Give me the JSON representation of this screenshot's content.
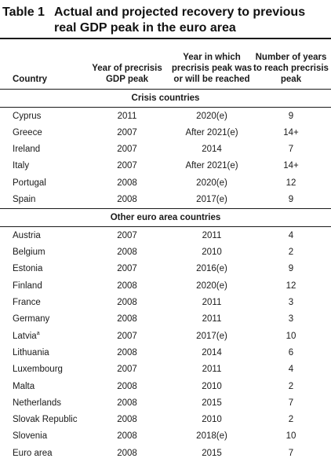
{
  "title": {
    "number": "Table 1",
    "text": "Actual and projected recovery to previous real GDP peak in the euro area"
  },
  "columns": {
    "country": "Country",
    "precrisis_peak": "Year of precrisis GDP peak",
    "reach_year": "Year in which precrisis peak was or will be reached",
    "years_to_reach": "Number of years to reach precrisis peak"
  },
  "sections": [
    {
      "label": "Crisis countries",
      "rows": [
        {
          "country": "Cyprus",
          "sup": "",
          "peak": "2011",
          "reach": "2020(e)",
          "years": "9"
        },
        {
          "country": "Greece",
          "sup": "",
          "peak": "2007",
          "reach": "After 2021(e)",
          "years": "14+"
        },
        {
          "country": "Ireland",
          "sup": "",
          "peak": "2007",
          "reach": "2014",
          "years": "7"
        },
        {
          "country": "Italy",
          "sup": "",
          "peak": "2007",
          "reach": "After 2021(e)",
          "years": "14+"
        },
        {
          "country": "Portugal",
          "sup": "",
          "peak": "2008",
          "reach": "2020(e)",
          "years": "12"
        },
        {
          "country": "Spain",
          "sup": "",
          "peak": "2008",
          "reach": "2017(e)",
          "years": "9"
        }
      ]
    },
    {
      "label": "Other euro area countries",
      "rows": [
        {
          "country": "Austria",
          "sup": "",
          "peak": "2007",
          "reach": "2011",
          "years": "4"
        },
        {
          "country": "Belgium",
          "sup": "",
          "peak": "2008",
          "reach": "2010",
          "years": "2"
        },
        {
          "country": "Estonia",
          "sup": "",
          "peak": "2007",
          "reach": "2016(e)",
          "years": "9"
        },
        {
          "country": "Finland",
          "sup": "",
          "peak": "2008",
          "reach": "2020(e)",
          "years": "12"
        },
        {
          "country": "France",
          "sup": "",
          "peak": "2008",
          "reach": "2011",
          "years": "3"
        },
        {
          "country": "Germany",
          "sup": "",
          "peak": "2008",
          "reach": "2011",
          "years": "3"
        },
        {
          "country": "Latvia",
          "sup": "a",
          "peak": "2007",
          "reach": "2017(e)",
          "years": "10"
        },
        {
          "country": "Lithuania",
          "sup": "",
          "peak": "2008",
          "reach": "2014",
          "years": "6"
        },
        {
          "country": "Luxembourg",
          "sup": "",
          "peak": "2007",
          "reach": "2011",
          "years": "4"
        },
        {
          "country": "Malta",
          "sup": "",
          "peak": "2008",
          "reach": "2010",
          "years": "2"
        },
        {
          "country": "Netherlands",
          "sup": "",
          "peak": "2008",
          "reach": "2015",
          "years": "7"
        },
        {
          "country": "Slovak Republic",
          "sup": "",
          "peak": "2008",
          "reach": "2010",
          "years": "2"
        },
        {
          "country": "Slovenia",
          "sup": "",
          "peak": "2008",
          "reach": "2018(e)",
          "years": "10"
        },
        {
          "country": "Euro area",
          "sup": "",
          "peak": "2008",
          "reach": "2015",
          "years": "7"
        }
      ]
    }
  ]
}
